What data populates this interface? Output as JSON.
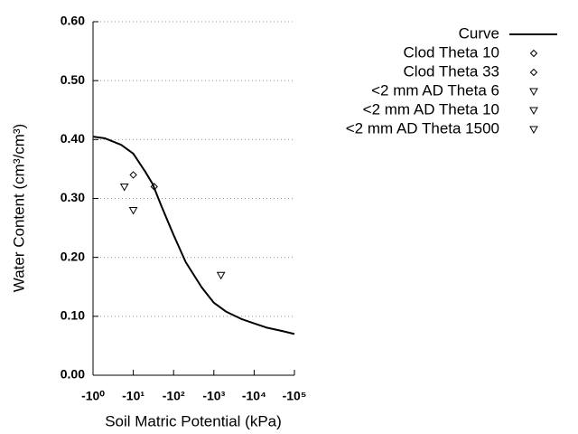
{
  "chart_data": {
    "type": "scatter",
    "xlabel": "Soil Matric Potential (kPa)",
    "ylabel": "Water Content (cm³/cm³)",
    "xscale": "log",
    "xlim": [
      -1,
      -100000
    ],
    "xticks": [
      {
        "value": -1,
        "label": "-10⁰"
      },
      {
        "value": -10,
        "label": "-10¹"
      },
      {
        "value": -100,
        "label": "-10²"
      },
      {
        "value": -1000,
        "label": "-10³"
      },
      {
        "value": -10000,
        "label": "-10⁴"
      },
      {
        "value": -100000,
        "label": "-10⁵"
      }
    ],
    "ylim": [
      0,
      0.6
    ],
    "yticks": [
      {
        "value": 0,
        "label": "0.00"
      },
      {
        "value": 0.1,
        "label": "0.10"
      },
      {
        "value": 0.2,
        "label": "0.20"
      },
      {
        "value": 0.3,
        "label": "0.30"
      },
      {
        "value": 0.4,
        "label": "0.40"
      },
      {
        "value": 0.5,
        "label": "0.50"
      },
      {
        "value": 0.6,
        "label": "0.60"
      }
    ],
    "grid": true,
    "legend": "right",
    "series": [
      {
        "name": "Curve",
        "type": "line",
        "color": "#000000",
        "x": [
          -1,
          -2,
          -5,
          -10,
          -20,
          -30,
          -50,
          -100,
          -200,
          -500,
          -1000,
          -2000,
          -5000,
          -10000,
          -20000,
          -50000,
          -100000
        ],
        "values": [
          0.405,
          0.402,
          0.391,
          0.376,
          0.345,
          0.325,
          0.287,
          0.238,
          0.192,
          0.149,
          0.123,
          0.108,
          0.095,
          0.088,
          0.081,
          0.075,
          0.07
        ]
      },
      {
        "name": "Clod Theta 10",
        "marker": "diamond",
        "color": "#000000",
        "x": [
          -10
        ],
        "values": [
          0.34
        ]
      },
      {
        "name": "Clod Theta 33",
        "marker": "diamond",
        "color": "#000000",
        "x": [
          -33
        ],
        "values": [
          0.32
        ]
      },
      {
        "name": "<2 mm AD Theta 6",
        "marker": "triangle-down",
        "color": "#000000",
        "x": [
          -6
        ],
        "values": [
          0.32
        ]
      },
      {
        "name": "<2 mm AD Theta 10",
        "marker": "triangle-down",
        "color": "#000000",
        "x": [
          -10
        ],
        "values": [
          0.28
        ]
      },
      {
        "name": "<2 mm AD Theta 1500",
        "marker": "triangle-down",
        "color": "#000000",
        "x": [
          -1500
        ],
        "values": [
          0.17
        ]
      }
    ]
  }
}
